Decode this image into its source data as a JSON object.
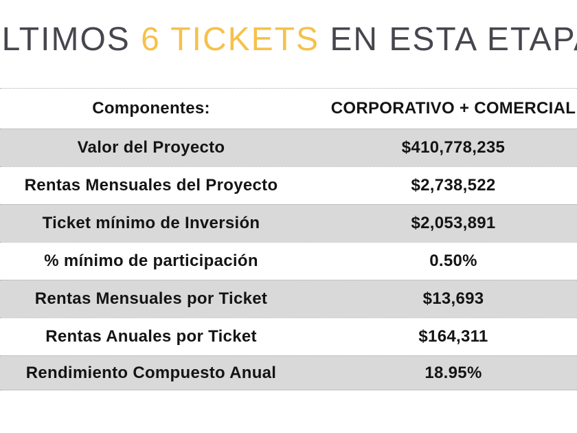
{
  "title": {
    "prefix": "ÚLTIMOS ",
    "highlight": "6 TICKETS",
    "suffix": " EN ESTA ETAPA"
  },
  "colors": {
    "title_text": "#46464e",
    "accent_yellow": "#f6c14a",
    "row_alt_bg": "#d9d9d9",
    "table_text": "#141414",
    "divider": "#a8a8a8"
  },
  "table": {
    "header": {
      "label": "Componentes:",
      "value": "CORPORATIVO + COMERCIAL"
    },
    "rows": [
      {
        "label": "Valor del Proyecto",
        "value": "$410,778,235"
      },
      {
        "label": "Rentas Mensuales del Proyecto",
        "value": "$2,738,522"
      },
      {
        "label": "Ticket mínimo de Inversión",
        "value": "$2,053,891"
      },
      {
        "label": "% mínimo de participación",
        "value": "0.50%"
      },
      {
        "label": "Rentas Mensuales por Ticket",
        "value": "$13,693"
      },
      {
        "label": "Rentas Anuales por Ticket",
        "value": "$164,311"
      },
      {
        "label": "Rendimiento Compuesto Anual",
        "value": "18.95%"
      }
    ]
  }
}
